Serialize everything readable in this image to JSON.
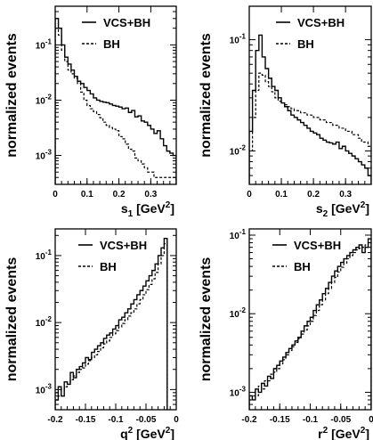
{
  "chart_data": [
    {
      "type": "line",
      "ylabel": "normalized events",
      "xlabel_main": "s",
      "xlabel_sub": "1",
      "xlabel_unit": "[GeV",
      "xlabel_exp": "2",
      "xlabel_close": "]",
      "xlim": [
        0,
        0.38
      ],
      "ylim": [
        0.0003,
        0.5
      ],
      "yscale": "log",
      "xticks": [
        0,
        0.1,
        0.2,
        0.3
      ],
      "xtick_labels": [
        "0",
        "0.1",
        "0.2",
        "0.3"
      ],
      "yticks": [
        0.001,
        0.01,
        0.1
      ],
      "ytick_labels_base": [
        "10",
        "10",
        "10"
      ],
      "ytick_labels_exp": [
        "-3",
        "-2",
        "-1"
      ],
      "legend_location": "top-right",
      "series": [
        {
          "name": "VCS+BH",
          "style": "solid",
          "x": [
            0.005,
            0.015,
            0.025,
            0.035,
            0.045,
            0.055,
            0.065,
            0.075,
            0.085,
            0.095,
            0.105,
            0.115,
            0.125,
            0.135,
            0.145,
            0.155,
            0.165,
            0.175,
            0.185,
            0.195,
            0.205,
            0.215,
            0.225,
            0.235,
            0.245,
            0.255,
            0.265,
            0.275,
            0.285,
            0.295,
            0.305,
            0.315,
            0.325,
            0.335,
            0.345,
            0.355,
            0.365,
            0.375
          ],
          "y": [
            0.3,
            0.2,
            0.1,
            0.06,
            0.045,
            0.035,
            0.027,
            0.022,
            0.02,
            0.017,
            0.015,
            0.013,
            0.011,
            0.01,
            0.0095,
            0.0092,
            0.009,
            0.0085,
            0.008,
            0.0078,
            0.0075,
            0.007,
            0.0072,
            0.006,
            0.0065,
            0.005,
            0.0052,
            0.0042,
            0.004,
            0.0035,
            0.003,
            0.0025,
            0.0028,
            0.002,
            0.0015,
            0.0012,
            0.0011,
            0.001
          ]
        },
        {
          "name": "BH",
          "style": "dashed",
          "x": [
            0.005,
            0.015,
            0.025,
            0.035,
            0.045,
            0.055,
            0.065,
            0.075,
            0.085,
            0.095,
            0.105,
            0.115,
            0.125,
            0.135,
            0.145,
            0.155,
            0.165,
            0.175,
            0.185,
            0.195,
            0.205,
            0.215,
            0.225,
            0.235,
            0.245,
            0.255,
            0.265,
            0.275,
            0.285,
            0.295,
            0.305,
            0.315,
            0.325,
            0.335,
            0.345,
            0.355,
            0.365,
            0.375
          ],
          "y": [
            0.2,
            0.15,
            0.08,
            0.05,
            0.035,
            0.03,
            0.025,
            0.02,
            0.014,
            0.01,
            0.008,
            0.007,
            0.0062,
            0.0055,
            0.0048,
            0.004,
            0.0035,
            0.0032,
            0.003,
            0.0028,
            0.0022,
            0.002,
            0.0016,
            0.0013,
            0.0012,
            0.0009,
            0.0008,
            0.0007,
            0.0006,
            0.0005,
            0.0005,
            0.0004,
            0.0004,
            0.0004,
            0.0004,
            0.0004,
            0.0004,
            0.0004
          ]
        }
      ]
    },
    {
      "type": "line",
      "ylabel": "normalized events",
      "xlabel_main": "s",
      "xlabel_sub": "2",
      "xlabel_unit": "[GeV",
      "xlabel_exp": "2",
      "xlabel_close": "]",
      "xlim": [
        0,
        0.38
      ],
      "ylim": [
        0.005,
        0.2
      ],
      "yscale": "log",
      "xticks": [
        0,
        0.1,
        0.2,
        0.3
      ],
      "xtick_labels": [
        "0",
        "0.1",
        "0.2",
        "0.3"
      ],
      "yticks": [
        0.01,
        0.1
      ],
      "ytick_labels_base": [
        "10",
        "10"
      ],
      "ytick_labels_exp": [
        "-2",
        "-1"
      ],
      "legend_location": "top-right",
      "series": [
        {
          "name": "VCS+BH",
          "style": "solid",
          "x": [
            0.005,
            0.015,
            0.025,
            0.035,
            0.045,
            0.055,
            0.065,
            0.075,
            0.085,
            0.095,
            0.105,
            0.115,
            0.125,
            0.135,
            0.145,
            0.155,
            0.165,
            0.175,
            0.185,
            0.195,
            0.205,
            0.215,
            0.225,
            0.235,
            0.245,
            0.255,
            0.265,
            0.275,
            0.285,
            0.295,
            0.305,
            0.315,
            0.325,
            0.335,
            0.345,
            0.355,
            0.365,
            0.375
          ],
          "y": [
            0.015,
            0.035,
            0.08,
            0.11,
            0.07,
            0.055,
            0.045,
            0.038,
            0.035,
            0.03,
            0.027,
            0.025,
            0.023,
            0.021,
            0.02,
            0.019,
            0.018,
            0.017,
            0.016,
            0.015,
            0.0145,
            0.014,
            0.013,
            0.0125,
            0.012,
            0.0118,
            0.0115,
            0.012,
            0.0105,
            0.011,
            0.01,
            0.0095,
            0.009,
            0.0085,
            0.008,
            0.0075,
            0.007,
            0.006
          ]
        },
        {
          "name": "BH",
          "style": "dashed",
          "x": [
            0.005,
            0.015,
            0.025,
            0.035,
            0.045,
            0.055,
            0.065,
            0.075,
            0.085,
            0.095,
            0.105,
            0.115,
            0.125,
            0.135,
            0.145,
            0.155,
            0.165,
            0.175,
            0.185,
            0.195,
            0.205,
            0.215,
            0.225,
            0.235,
            0.245,
            0.255,
            0.265,
            0.275,
            0.285,
            0.295,
            0.305,
            0.315,
            0.325,
            0.335,
            0.345,
            0.355,
            0.365,
            0.375
          ],
          "y": [
            0.01,
            0.02,
            0.035,
            0.05,
            0.048,
            0.042,
            0.038,
            0.034,
            0.03,
            0.028,
            0.027,
            0.026,
            0.025,
            0.024,
            0.023,
            0.023,
            0.022,
            0.022,
            0.021,
            0.021,
            0.02,
            0.02,
            0.019,
            0.019,
            0.018,
            0.018,
            0.017,
            0.017,
            0.016,
            0.016,
            0.015,
            0.015,
            0.014,
            0.014,
            0.013,
            0.012,
            0.012,
            0.011
          ]
        }
      ]
    },
    {
      "type": "line",
      "ylabel": "normalized events",
      "xlabel_main": "q",
      "xlabel_sub": "",
      "xlabel_unit": "[GeV",
      "xlabel_exp": "2",
      "xlabel_close": "]",
      "xlabel_var_exp": "2",
      "xlim": [
        -0.2,
        0.0
      ],
      "ylim": [
        0.0005,
        0.25
      ],
      "yscale": "log",
      "xticks": [
        -0.2,
        -0.15,
        -0.1,
        -0.05,
        0
      ],
      "xtick_labels": [
        "-0.2",
        "-0.15",
        "-0.1",
        "-0.05",
        "0"
      ],
      "yticks": [
        0.001,
        0.01,
        0.1
      ],
      "ytick_labels_base": [
        "10",
        "10",
        "10"
      ],
      "ytick_labels_exp": [
        "-3",
        "-2",
        "-1"
      ],
      "legend_location": "top-left",
      "series": [
        {
          "name": "VCS+BH",
          "style": "solid",
          "x": [
            -0.1975,
            -0.1925,
            -0.1875,
            -0.1825,
            -0.1775,
            -0.1725,
            -0.1675,
            -0.1625,
            -0.1575,
            -0.1525,
            -0.1475,
            -0.1425,
            -0.1375,
            -0.1325,
            -0.1275,
            -0.1225,
            -0.1175,
            -0.1125,
            -0.1075,
            -0.1025,
            -0.0975,
            -0.0925,
            -0.0875,
            -0.0825,
            -0.0775,
            -0.0725,
            -0.0675,
            -0.0625,
            -0.0575,
            -0.0525,
            -0.0475,
            -0.0425,
            -0.0375,
            -0.0325,
            -0.0275,
            -0.0225,
            -0.0175
          ],
          "y": [
            0.0007,
            0.0011,
            0.0008,
            0.0013,
            0.0012,
            0.0018,
            0.0015,
            0.002,
            0.0022,
            0.0025,
            0.003,
            0.0028,
            0.0036,
            0.004,
            0.0045,
            0.005,
            0.0058,
            0.0065,
            0.007,
            0.008,
            0.009,
            0.011,
            0.012,
            0.014,
            0.016,
            0.019,
            0.022,
            0.026,
            0.03,
            0.035,
            0.042,
            0.05,
            0.06,
            0.075,
            0.1,
            0.13,
            0.18
          ]
        },
        {
          "name": "BH",
          "style": "dashed",
          "x": [
            -0.1975,
            -0.1925,
            -0.1875,
            -0.1825,
            -0.1775,
            -0.1725,
            -0.1675,
            -0.1625,
            -0.1575,
            -0.1525,
            -0.1475,
            -0.1425,
            -0.1375,
            -0.1325,
            -0.1275,
            -0.1225,
            -0.1175,
            -0.1125,
            -0.1075,
            -0.1025,
            -0.0975,
            -0.0925,
            -0.0875,
            -0.0825,
            -0.0775,
            -0.0725,
            -0.0675,
            -0.0625,
            -0.0575,
            -0.0525,
            -0.0475,
            -0.0425,
            -0.0375,
            -0.0325,
            -0.0275,
            -0.0225,
            -0.0175
          ],
          "y": [
            0.0009,
            0.0008,
            0.001,
            0.0011,
            0.0013,
            0.0014,
            0.0016,
            0.0018,
            0.002,
            0.0021,
            0.0024,
            0.0027,
            0.003,
            0.0033,
            0.0037,
            0.0042,
            0.0048,
            0.0053,
            0.006,
            0.0068,
            0.0076,
            0.0086,
            0.0097,
            0.011,
            0.0125,
            0.014,
            0.016,
            0.019,
            0.022,
            0.026,
            0.031,
            0.037,
            0.045,
            0.056,
            0.075,
            0.1,
            0.15
          ]
        }
      ]
    },
    {
      "type": "line",
      "ylabel": "normalized events",
      "xlabel_main": "r",
      "xlabel_sub": "",
      "xlabel_unit": "[GeV",
      "xlabel_exp": "2",
      "xlabel_close": "]",
      "xlabel_var_exp": "2",
      "xlim": [
        -0.2,
        0.0
      ],
      "ylim": [
        0.0006,
        0.12
      ],
      "yscale": "log",
      "xticks": [
        -0.2,
        -0.15,
        -0.1,
        -0.05,
        0
      ],
      "xtick_labels": [
        "-0.2",
        "-0.15",
        "-0.1",
        "-0.05",
        "0"
      ],
      "yticks": [
        0.001,
        0.01,
        0.1
      ],
      "ytick_labels_base": [
        "10",
        "10",
        "10"
      ],
      "ytick_labels_exp": [
        "-3",
        "-2",
        "-1"
      ],
      "legend_location": "top-left",
      "series": [
        {
          "name": "VCS+BH",
          "style": "solid",
          "x": [
            -0.1975,
            -0.1925,
            -0.1875,
            -0.1825,
            -0.1775,
            -0.1725,
            -0.1675,
            -0.1625,
            -0.1575,
            -0.1525,
            -0.1475,
            -0.1425,
            -0.1375,
            -0.1325,
            -0.1275,
            -0.1225,
            -0.1175,
            -0.1125,
            -0.1075,
            -0.1025,
            -0.0975,
            -0.0925,
            -0.0875,
            -0.0825,
            -0.0775,
            -0.0725,
            -0.0675,
            -0.0625,
            -0.0575,
            -0.0525,
            -0.0475,
            -0.0425,
            -0.0375,
            -0.0325,
            -0.0275,
            -0.0225,
            -0.0175,
            -0.0125,
            -0.0075,
            -0.0025
          ],
          "y": [
            0.0009,
            0.0008,
            0.0011,
            0.001,
            0.0013,
            0.0012,
            0.0016,
            0.0015,
            0.002,
            0.0022,
            0.0025,
            0.0028,
            0.0032,
            0.0036,
            0.004,
            0.0045,
            0.005,
            0.006,
            0.007,
            0.008,
            0.009,
            0.011,
            0.013,
            0.015,
            0.018,
            0.021,
            0.025,
            0.03,
            0.035,
            0.04,
            0.045,
            0.05,
            0.055,
            0.06,
            0.065,
            0.07,
            0.075,
            0.06,
            0.07,
            0.09
          ]
        },
        {
          "name": "BH",
          "style": "dashed",
          "x": [
            -0.1975,
            -0.1925,
            -0.1875,
            -0.1825,
            -0.1775,
            -0.1725,
            -0.1675,
            -0.1625,
            -0.1575,
            -0.1525,
            -0.1475,
            -0.1425,
            -0.1375,
            -0.1325,
            -0.1275,
            -0.1225,
            -0.1175,
            -0.1125,
            -0.1075,
            -0.1025,
            -0.0975,
            -0.0925,
            -0.0875,
            -0.0825,
            -0.0775,
            -0.0725,
            -0.0675,
            -0.0625,
            -0.0575,
            -0.0525,
            -0.0475,
            -0.0425,
            -0.0375,
            -0.0325,
            -0.0275,
            -0.0225,
            -0.0175,
            -0.0125,
            -0.0075,
            -0.0025
          ],
          "y": [
            0.0008,
            0.0009,
            0.0009,
            0.0012,
            0.0011,
            0.0014,
            0.0014,
            0.0017,
            0.0018,
            0.002,
            0.0023,
            0.0026,
            0.003,
            0.0034,
            0.0038,
            0.0043,
            0.0048,
            0.0055,
            0.0062,
            0.007,
            0.008,
            0.0095,
            0.011,
            0.013,
            0.015,
            0.018,
            0.021,
            0.025,
            0.029,
            0.034,
            0.039,
            0.044,
            0.05,
            0.055,
            0.06,
            0.065,
            0.068,
            0.07,
            0.075,
            0.08
          ]
        }
      ]
    }
  ]
}
